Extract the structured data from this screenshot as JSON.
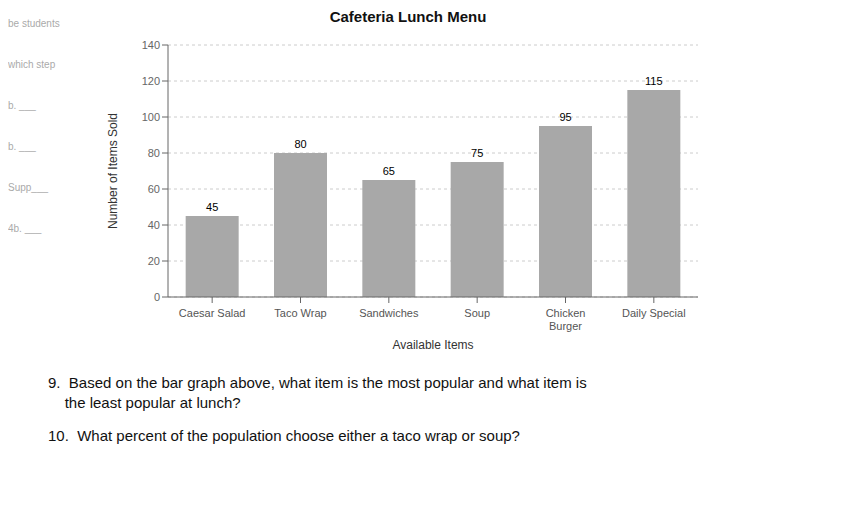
{
  "chart_data": {
    "type": "bar",
    "title": "Cafeteria Lunch Menu",
    "x_label": "Available Items",
    "y_label": "Number of Items Sold",
    "categories": [
      "Caesar Salad",
      "Taco Wrap",
      "Sandwiches",
      "Soup",
      "Chicken\nBurger",
      "Daily Special"
    ],
    "values": [
      45,
      80,
      65,
      75,
      95,
      115
    ],
    "color": "#a8a8a8",
    "ylim": [
      0,
      140
    ],
    "yticks": [
      0,
      20,
      40,
      60,
      80,
      100,
      120,
      140
    ],
    "grid": true,
    "data_labels": true,
    "annotations": [
      "9.  Based on the bar graph above, what item is the most popular and what item is\n    the least popular at lunch?",
      "10.  What percent of the population choose either a taco wrap or soup?",
      "be students",
      "which step",
      "b. ___",
      "b. ___",
      "Supp___",
      "4b. ___"
    ]
  }
}
